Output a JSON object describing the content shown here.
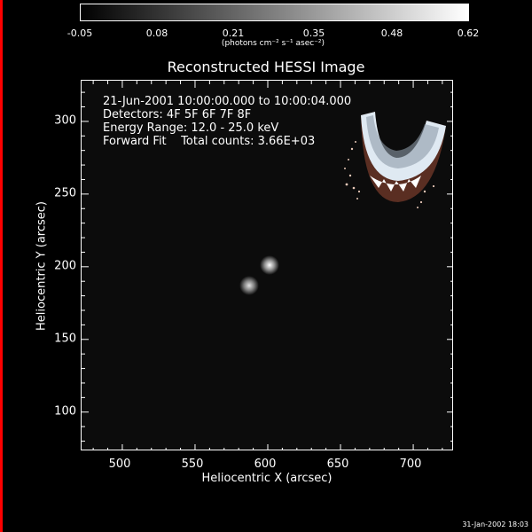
{
  "colorbar": {
    "tick_labels": [
      "-0.05",
      "0.08",
      "0.21",
      "0.35",
      "0.48",
      "0.62"
    ],
    "units": "(photons cm⁻² s⁻¹ asec⁻²)",
    "range": [
      -0.05,
      0.62
    ],
    "gradient": [
      "#000000",
      "#ffffff"
    ]
  },
  "chart_data": {
    "type": "heatmap",
    "title": "Reconstructed HESSI Image",
    "xlabel": "Heliocentric X (arcsec)",
    "ylabel": "Heliocentric Y (arcsec)",
    "xlim": [
      472,
      728
    ],
    "ylim": [
      73,
      328
    ],
    "xticks": [
      500,
      550,
      600,
      650,
      700
    ],
    "yticks": [
      100,
      150,
      200,
      250,
      300
    ],
    "sources": [
      {
        "x": 601,
        "y": 201,
        "intensity": 0.62
      },
      {
        "x": 587,
        "y": 187,
        "intensity": 0.55
      }
    ],
    "annotations": [
      "21-Jun-2001 10:00:00.000 to 10:00:04.000",
      "Detectors: 4F 5F 6F 7F 8F",
      "Energy Range: 12.0 - 25.0 keV",
      "Forward Fit    Total counts: 3.66E+03"
    ]
  },
  "footer": {
    "timestamp": "31-Jan-2002 18:03"
  },
  "colors": {
    "left_bar": "#ff0000",
    "background": "#000000",
    "plot_background": "#0c0c0c"
  },
  "icons": {
    "logo": "hessi-logo-icon"
  }
}
